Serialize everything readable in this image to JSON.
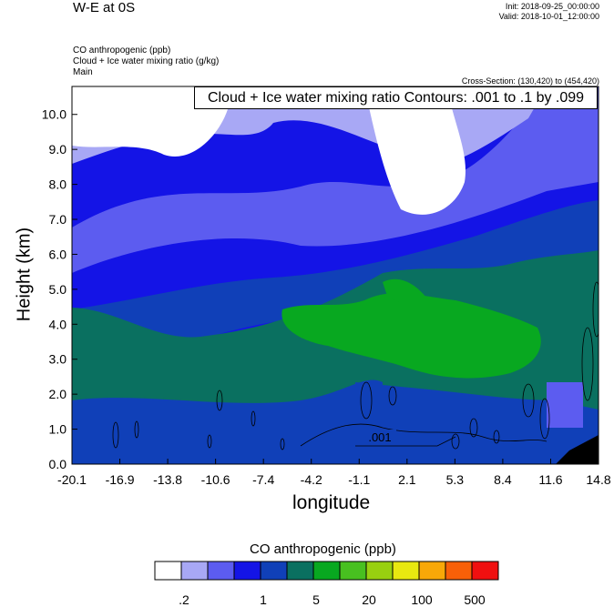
{
  "header": {
    "title": "W-E at 0S",
    "init": "Init: 2018-09-25_00:00:00",
    "valid": "Valid: 2018-10-01_12:00:00"
  },
  "description": {
    "line1": "CO anthropogenic   (ppb)",
    "line2": "Cloud + Ice water mixing ratio   (g/kg)",
    "line3": "Main"
  },
  "cross_section": "Cross-Section: (130,420) to (454,420)",
  "contour_info": "Cloud + Ice water mixing ratio Contours: .001 to .1 by .099",
  "contour_label": ".001",
  "chart_data": {
    "type": "heatmap",
    "xlabel": "longitude",
    "ylabel": "Height (km)",
    "x_ticks": [
      "-20.1",
      "-16.9",
      "-13.8",
      "-10.6",
      "-7.4",
      "-4.2",
      "-1.1",
      "2.1",
      "5.3",
      "8.4",
      "11.6",
      "14.8"
    ],
    "y_ticks": [
      "0.0",
      "1.0",
      "2.0",
      "3.0",
      "4.0",
      "5.0",
      "6.0",
      "7.0",
      "8.0",
      "9.0",
      "10.0"
    ],
    "xlim": [
      -20.1,
      14.8
    ],
    "ylim": [
      0,
      10.8
    ],
    "colorbar": {
      "title": "CO anthropogenic  (ppb)",
      "labels": [
        ".2",
        "1",
        "5",
        "20",
        "100",
        "500"
      ],
      "colors": [
        "#ffffff",
        "#a8a8f5",
        "#5c5cf0",
        "#1414e6",
        "#1040b8",
        "#0a7060",
        "#08a820",
        "#48c020",
        "#98d010",
        "#e8e810",
        "#f8a808",
        "#f86008",
        "#f01010"
      ]
    },
    "grid": false
  }
}
